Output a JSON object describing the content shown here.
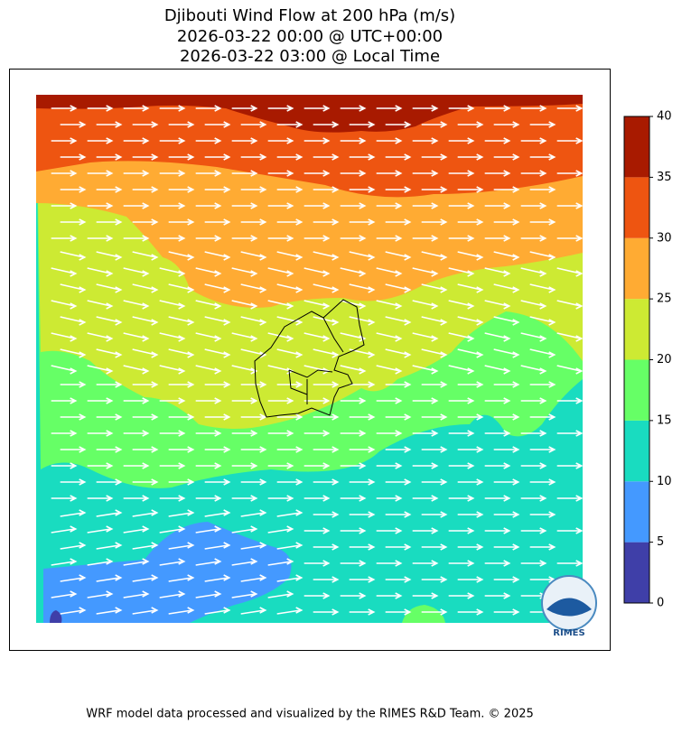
{
  "title": [
    "Djibouti Wind Flow at 200 hPa (m/s)",
    "2026-03-22 00:00 @ UTC+00:00",
    "2026-03-22 03:00 @ Local Time"
  ],
  "colorbar": {
    "ticks": [
      0,
      5,
      10,
      15,
      20,
      25,
      30,
      35,
      40
    ],
    "colors": [
      "#3f3fa8",
      "#4499ff",
      "#19dcc0",
      "#66ff66",
      "#cdea33",
      "#ffab33",
      "#ee5511",
      "#a81a00"
    ]
  },
  "logo": "RIMES",
  "footer": "WRF model data processed and visualized by the RIMES R&D Team. © 2025"
}
